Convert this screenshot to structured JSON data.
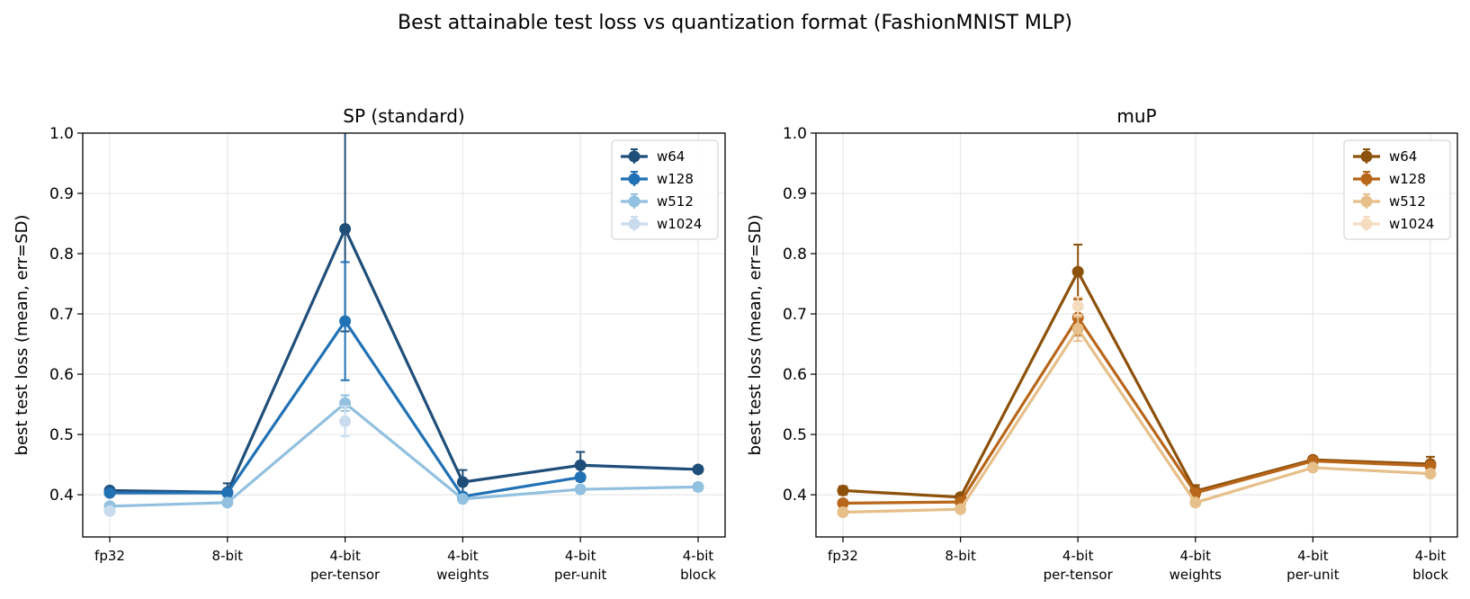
{
  "suptitle": "Best attainable test loss vs quantization format (FashionMNIST MLP)",
  "chart_data": [
    {
      "type": "line",
      "title": "SP (standard)",
      "ylabel": "best test loss (mean, err=SD)",
      "ylim": [
        0.33,
        1.0
      ],
      "yticks": [
        0.4,
        0.5,
        0.6,
        0.7,
        0.8,
        0.9,
        1.0
      ],
      "categories": [
        [
          "fp32"
        ],
        [
          "8-bit"
        ],
        [
          "4-bit",
          "per-tensor"
        ],
        [
          "4-bit",
          "weights"
        ],
        [
          "4-bit",
          "per-unit"
        ],
        [
          "4-bit",
          "block"
        ]
      ],
      "grid": true,
      "legend_position": "top-right",
      "series": [
        {
          "name": "w64",
          "color": "#1f4e79",
          "values": [
            0.407,
            0.404,
            0.841,
            0.421,
            0.449,
            0.442
          ],
          "err": [
            0.004,
            0.015,
            0.17,
            0.02,
            0.022,
            0.005
          ]
        },
        {
          "name": "w128",
          "color": "#2171b5",
          "values": [
            0.403,
            0.403,
            0.688,
            0.397,
            0.429,
            null
          ],
          "err": [
            0.004,
            0.004,
            0.098,
            0.006,
            0.006,
            null
          ]
        },
        {
          "name": "w512",
          "color": "#92c0df",
          "values": [
            0.381,
            0.387,
            0.552,
            0.393,
            0.409,
            0.413
          ],
          "err": [
            0.004,
            0.004,
            0.013,
            0.004,
            0.004,
            0.006
          ]
        },
        {
          "name": "w1024",
          "color": "#c9dcee",
          "values": [
            0.373,
            null,
            0.522,
            null,
            null,
            null
          ],
          "err": [
            0.004,
            null,
            0.025,
            null,
            null,
            null
          ]
        }
      ]
    },
    {
      "type": "line",
      "title": "muP",
      "ylabel": "best test loss (mean, err=SD)",
      "ylim": [
        0.33,
        1.0
      ],
      "yticks": [
        0.4,
        0.5,
        0.6,
        0.7,
        0.8,
        0.9,
        1.0
      ],
      "categories": [
        [
          "fp32"
        ],
        [
          "8-bit"
        ],
        [
          "4-bit",
          "per-tensor"
        ],
        [
          "4-bit",
          "weights"
        ],
        [
          "4-bit",
          "per-unit"
        ],
        [
          "4-bit",
          "block"
        ]
      ],
      "grid": true,
      "legend_position": "top-right",
      "series": [
        {
          "name": "w64",
          "color": "#8c510a",
          "values": [
            0.407,
            0.396,
            0.77,
            0.406,
            0.458,
            0.451
          ],
          "err": [
            0.007,
            0.004,
            0.045,
            0.01,
            0.005,
            0.012
          ]
        },
        {
          "name": "w128",
          "color": "#b8661a",
          "values": [
            0.386,
            0.388,
            0.694,
            0.403,
            0.456,
            0.448
          ],
          "err": [
            0.004,
            0.004,
            0.03,
            0.006,
            0.004,
            0.006
          ]
        },
        {
          "name": "w512",
          "color": "#e6bf8a",
          "values": [
            0.371,
            0.376,
            0.675,
            0.387,
            0.445,
            0.435
          ],
          "err": [
            0.004,
            0.004,
            0.02,
            0.005,
            0.004,
            0.005
          ]
        },
        {
          "name": "w1024",
          "color": "#f5dcbf",
          "values": [
            null,
            null,
            0.713,
            null,
            null,
            null
          ],
          "err": [
            null,
            null,
            0.015,
            null,
            null,
            null
          ]
        }
      ]
    }
  ]
}
